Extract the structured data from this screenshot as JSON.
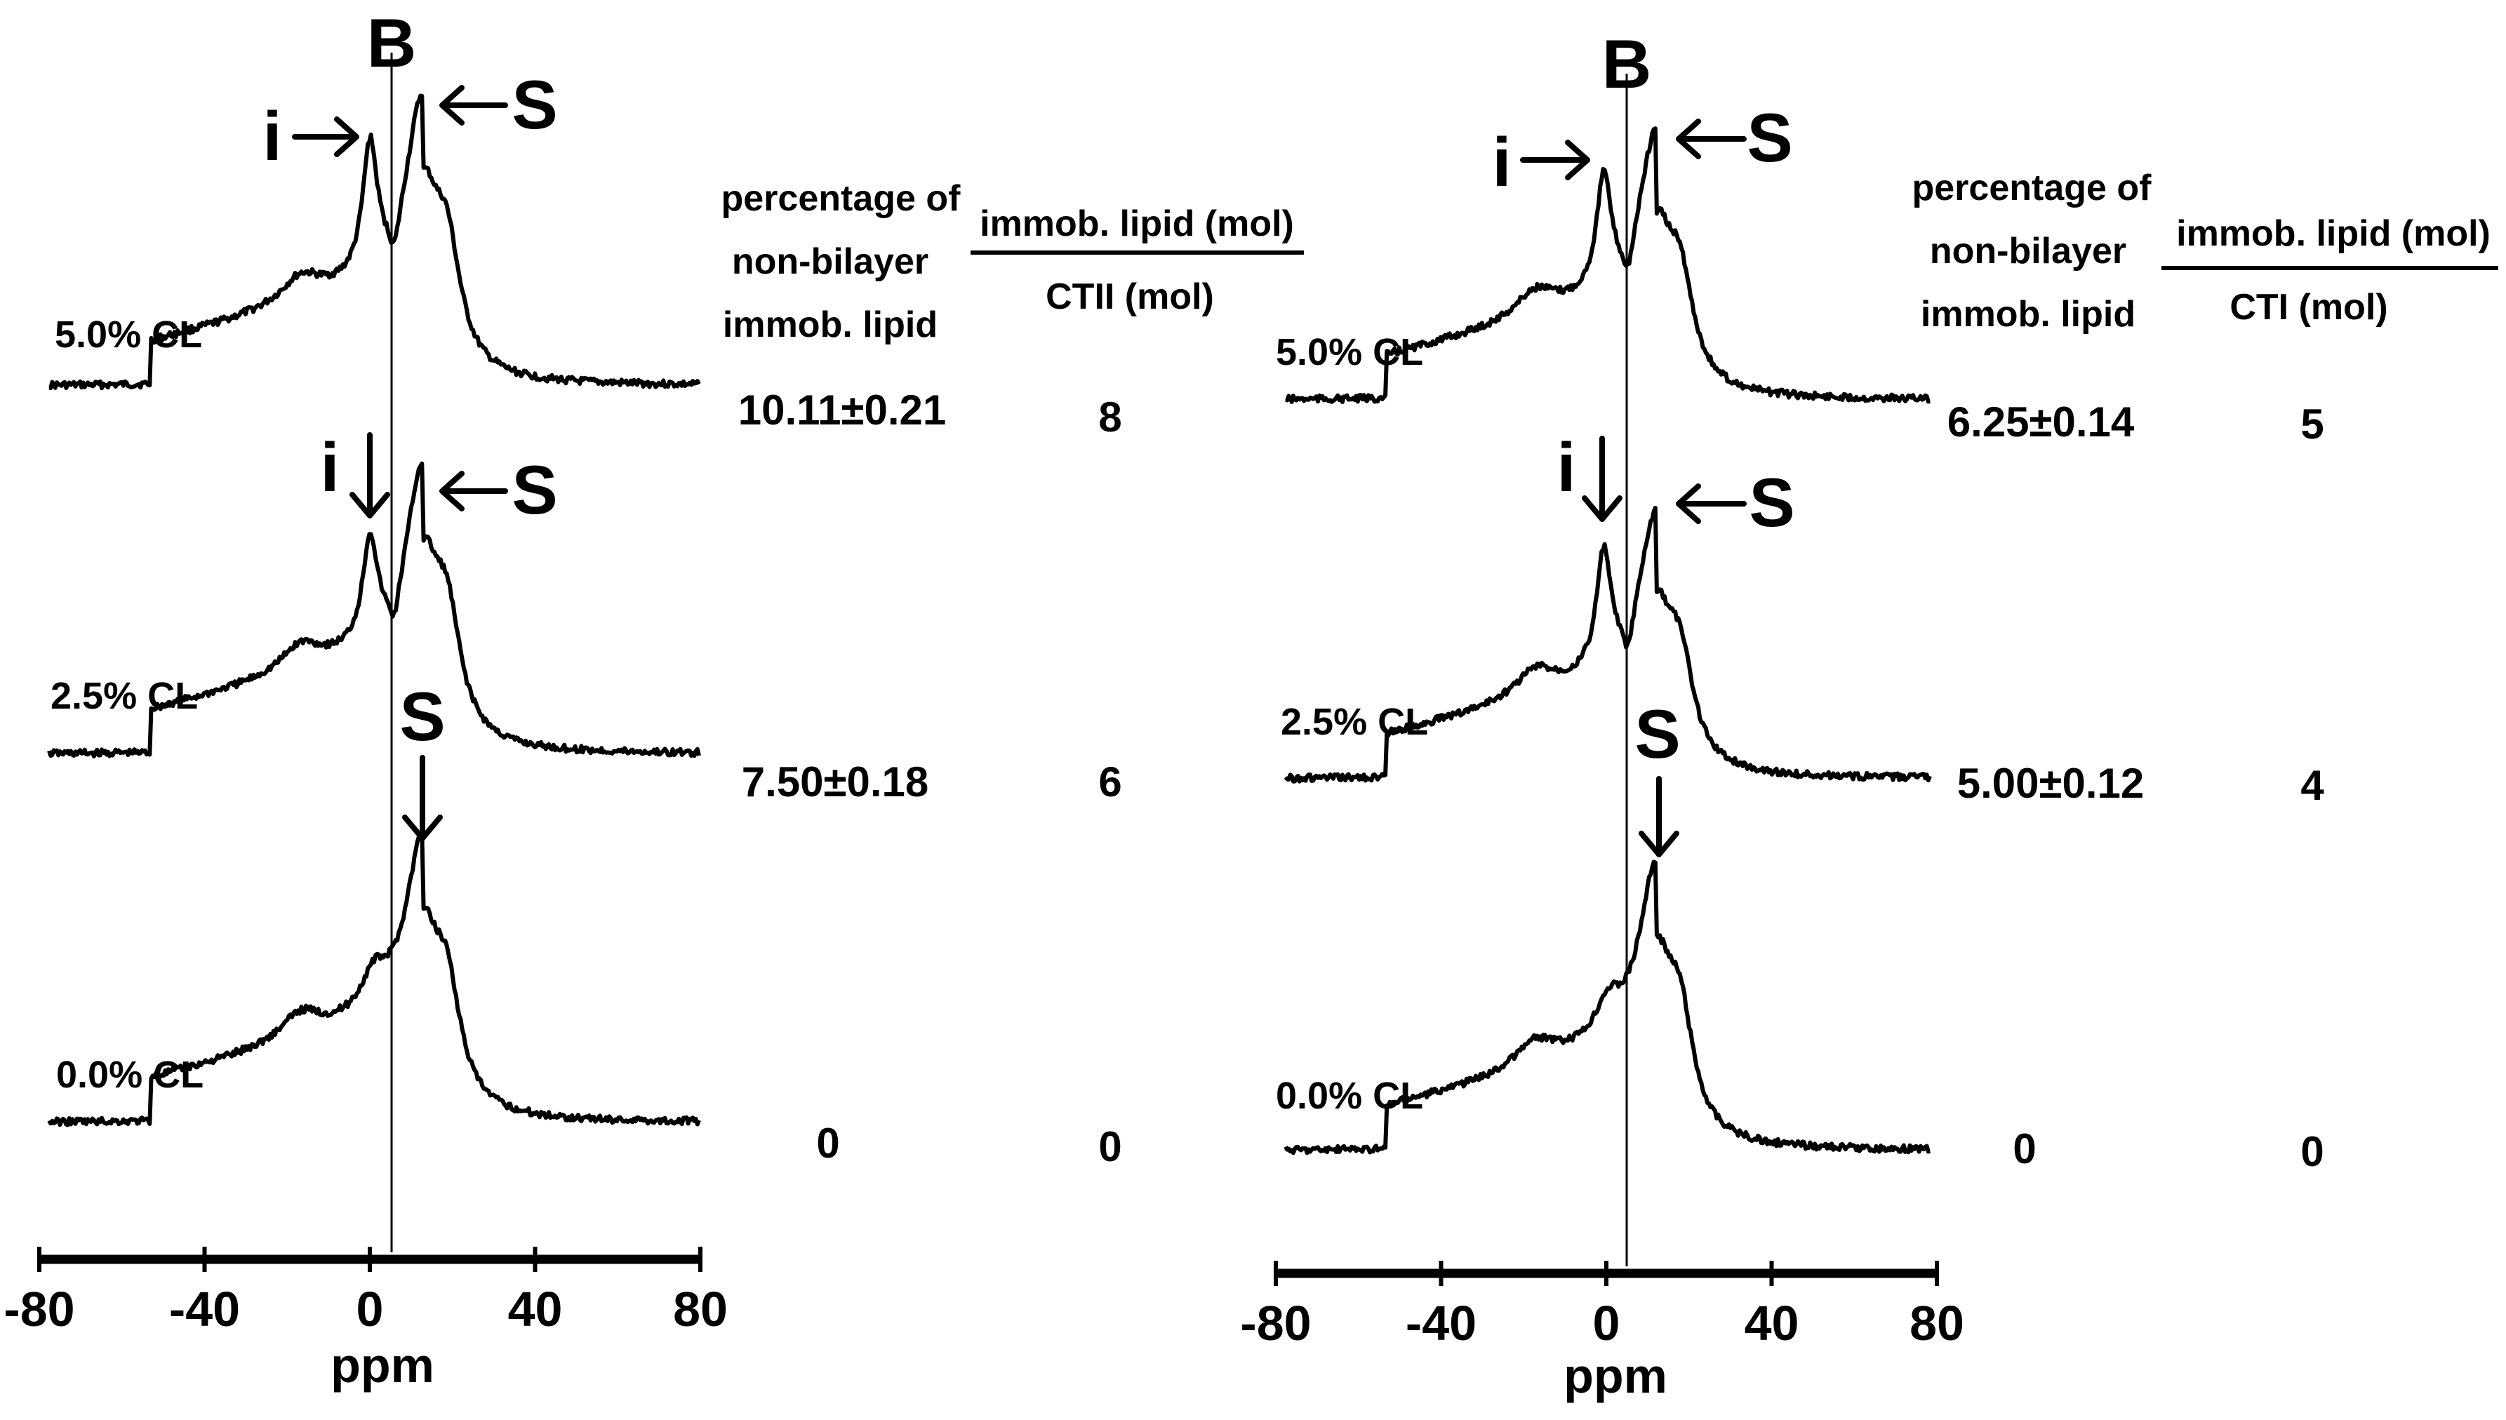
{
  "chart_data": [
    {
      "type": "line",
      "subtype": "31P NMR spectra (stacked)",
      "xlabel": "ppm",
      "xlim": [
        -80,
        80
      ],
      "xticks": [
        -80,
        -40,
        0,
        40,
        80
      ],
      "column_header_1": [
        "percentage of",
        "non-bilayer",
        "immob. lipid"
      ],
      "column_header_2_numerator": "immob. lipid (mol)",
      "column_header_2_denominator": "CTII (mol)",
      "annotations": {
        "B": "B",
        "i": "i",
        "S": "S"
      },
      "series": [
        {
          "name": "5.0% CL",
          "percentage": "10.11±0.21",
          "ratio": "8",
          "i_ppm": -1,
          "B_ppm": 5,
          "S_ppm": 12,
          "i_amp": 0.78,
          "S_amp": 0.8
        },
        {
          "name": "2.5% CL",
          "percentage": "7.50±0.18",
          "ratio": "6",
          "i_ppm": -1,
          "B_ppm": 5,
          "S_ppm": 12,
          "i_amp": 0.62,
          "S_amp": 0.8
        },
        {
          "name": "0.0% CL",
          "percentage": "0",
          "ratio": "0",
          "S_ppm": 12,
          "S_amp": 0.78
        }
      ]
    },
    {
      "type": "line",
      "subtype": "31P NMR spectra (stacked)",
      "xlabel": "ppm",
      "xlim": [
        -80,
        80
      ],
      "xticks": [
        -80,
        -40,
        0,
        40,
        80
      ],
      "column_header_1": [
        "percentage of",
        "non-bilayer",
        "immob. lipid"
      ],
      "column_header_2_numerator": "immob. lipid (mol)",
      "column_header_2_denominator": "CTI (mol)",
      "annotations": {
        "B": "B",
        "i": "i",
        "S": "S"
      },
      "series": [
        {
          "name": "5.0% CL",
          "percentage": "6.25±0.14",
          "ratio": "5",
          "i_ppm": -1,
          "B_ppm": 5,
          "S_ppm": 12,
          "i_amp": 0.68,
          "S_amp": 0.7
        },
        {
          "name": "2.5% CL",
          "percentage": "5.00±0.12",
          "ratio": "4",
          "i_ppm": -1,
          "B_ppm": 5,
          "S_ppm": 12,
          "i_amp": 0.7,
          "S_amp": 0.69
        },
        {
          "name": "0.0% CL",
          "percentage": "0",
          "ratio": "0",
          "S_ppm": 12,
          "S_amp": 0.78
        }
      ]
    }
  ]
}
